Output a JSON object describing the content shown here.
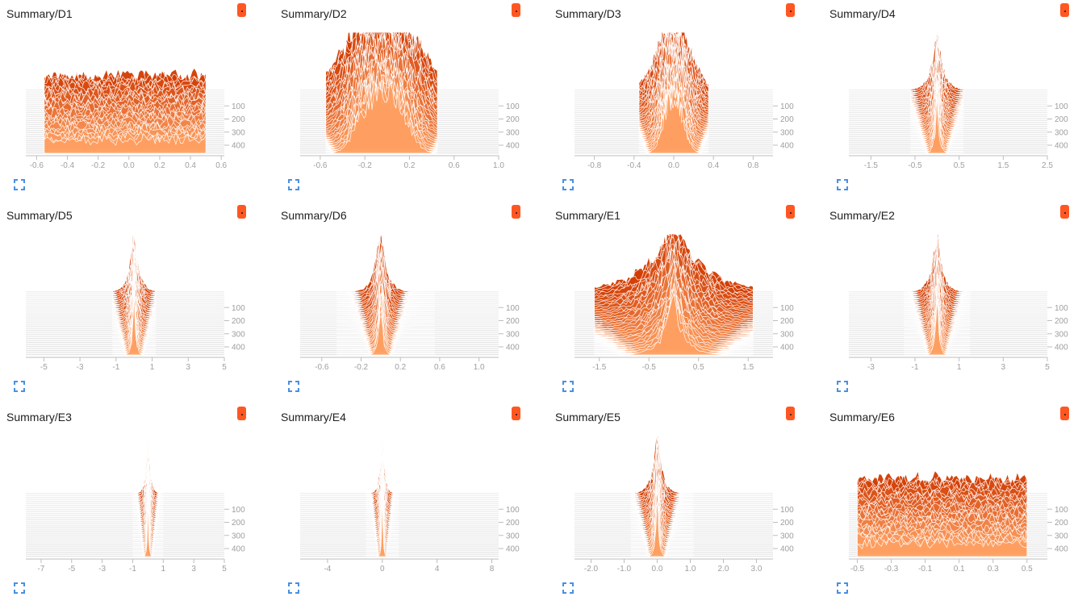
{
  "colors": {
    "front": "#ffa062",
    "back": "#d23a00",
    "badge": "#ff5722",
    "expand_icon": "#4a90e2",
    "axis": "#bdbdbd",
    "tick_text": "#9e9e9e",
    "title": "#212121"
  },
  "icons": {
    "badge": "caret-badge-icon",
    "expand": "expand-icon"
  },
  "chart_data": [
    {
      "type": "histogram-ridgeline",
      "title": "Summary/D1",
      "x_ticks": [
        -0.6,
        -0.4,
        -0.2,
        0.0,
        0.2,
        0.4,
        0.6
      ],
      "x_tick_labels": [
        "-0.6",
        "-0.4",
        "-0.2",
        "0.0",
        "0.2",
        "0.4",
        "0.6"
      ],
      "xlim": [
        -0.67,
        0.62
      ],
      "data_range": [
        -0.55,
        0.5
      ],
      "center": 0.0,
      "width": 0.75,
      "shape": "flat",
      "step_ticks": [
        100,
        200,
        300,
        400
      ],
      "step_range": [
        0,
        480
      ],
      "legend": "none",
      "grid": false
    },
    {
      "type": "histogram-ridgeline",
      "title": "Summary/D2",
      "x_ticks": [
        -0.6,
        -0.2,
        0.2,
        0.6,
        1.0
      ],
      "x_tick_labels": [
        "-0.6",
        "-0.2",
        "0.2",
        "0.6",
        "1.0"
      ],
      "xlim": [
        -0.78,
        1.0
      ],
      "data_range": [
        -0.55,
        0.45
      ],
      "center": -0.04,
      "width": 0.27,
      "shape": "plateau",
      "step_ticks": [
        100,
        200,
        300,
        400
      ],
      "step_range": [
        0,
        480
      ],
      "legend": "none",
      "grid": false
    },
    {
      "type": "histogram-ridgeline",
      "title": "Summary/D3",
      "x_ticks": [
        -0.8,
        -0.4,
        0.0,
        0.4,
        0.8
      ],
      "x_tick_labels": [
        "-0.8",
        "-0.4",
        "0.0",
        "0.4",
        "0.8"
      ],
      "xlim": [
        -1.0,
        1.0
      ],
      "data_range": [
        -0.35,
        0.35
      ],
      "center": 0.0,
      "width": 0.12,
      "shape": "round",
      "step_ticks": [
        100,
        200,
        300,
        400
      ],
      "step_range": [
        0,
        480
      ],
      "legend": "none",
      "grid": false
    },
    {
      "type": "histogram-ridgeline",
      "title": "Summary/D4",
      "x_ticks": [
        -1.5,
        -0.5,
        0.5,
        1.5,
        2.5
      ],
      "x_tick_labels": [
        "-1.5",
        "-0.5",
        "0.5",
        "1.5",
        "2.5"
      ],
      "xlim": [
        -2.0,
        2.5
      ],
      "data_range": [
        -0.6,
        0.6
      ],
      "center": 0.0,
      "width": 0.11,
      "shape": "spike",
      "step_ticks": [
        100,
        200,
        300,
        400
      ],
      "step_range": [
        0,
        480
      ],
      "legend": "none",
      "grid": false
    },
    {
      "type": "histogram-ridgeline",
      "title": "Summary/D5",
      "x_ticks": [
        -5,
        -3,
        -1,
        1,
        3,
        5
      ],
      "x_tick_labels": [
        "-5",
        "-3",
        "-1",
        "1",
        "3",
        "5"
      ],
      "xlim": [
        -6.0,
        5.0
      ],
      "data_range": [
        -1.2,
        1.2
      ],
      "center": 0.0,
      "width": 0.22,
      "shape": "spike",
      "step_ticks": [
        100,
        200,
        300,
        400
      ],
      "step_range": [
        0,
        480
      ],
      "legend": "none",
      "grid": false
    },
    {
      "type": "histogram-ridgeline",
      "title": "Summary/D6",
      "x_ticks": [
        -0.6,
        -0.2,
        0.2,
        0.6,
        1.0
      ],
      "x_tick_labels": [
        "-0.6",
        "-0.2",
        "0.2",
        "0.6",
        "1.0"
      ],
      "xlim": [
        -0.82,
        1.2
      ],
      "data_range": [
        -0.45,
        0.55
      ],
      "center": 0.0,
      "width": 0.05,
      "shape": "spike",
      "step_ticks": [
        100,
        200,
        300,
        400
      ],
      "step_range": [
        0,
        480
      ],
      "legend": "none",
      "grid": false
    },
    {
      "type": "histogram-ridgeline",
      "title": "Summary/E1",
      "x_ticks": [
        -1.5,
        -0.5,
        0.5,
        1.5
      ],
      "x_tick_labels": [
        "-1.5",
        "-0.5",
        "0.5",
        "1.5"
      ],
      "xlim": [
        -2.0,
        2.0
      ],
      "data_range": [
        -1.6,
        1.6
      ],
      "center": 0.0,
      "width": 0.35,
      "shape": "cone",
      "step_ticks": [
        100,
        200,
        300,
        400
      ],
      "step_range": [
        0,
        480
      ],
      "legend": "none",
      "grid": false
    },
    {
      "type": "histogram-ridgeline",
      "title": "Summary/E2",
      "x_ticks": [
        -3,
        -1,
        1,
        3,
        5
      ],
      "x_tick_labels": [
        "-3",
        "-1",
        "1",
        "3",
        "5"
      ],
      "xlim": [
        -4.0,
        5.0
      ],
      "data_range": [
        -1.5,
        1.5
      ],
      "center": 0.0,
      "width": 0.2,
      "shape": "spike",
      "step_ticks": [
        100,
        200,
        300,
        400
      ],
      "step_range": [
        0,
        480
      ],
      "legend": "none",
      "grid": false
    },
    {
      "type": "histogram-ridgeline",
      "title": "Summary/E3",
      "x_ticks": [
        -7,
        -5,
        -3,
        -1,
        1,
        3,
        5
      ],
      "x_tick_labels": [
        "-7",
        "-5",
        "-3",
        "-1",
        "1",
        "3",
        "5"
      ],
      "xlim": [
        -8.0,
        5.0
      ],
      "data_range": [
        -1.0,
        1.0
      ],
      "center": 0.0,
      "width": 0.12,
      "shape": "spike",
      "step_ticks": [
        100,
        200,
        300,
        400
      ],
      "step_range": [
        0,
        480
      ],
      "legend": "none",
      "grid": false
    },
    {
      "type": "histogram-ridgeline",
      "title": "Summary/E4",
      "x_ticks": [
        -4,
        0,
        4,
        8
      ],
      "x_tick_labels": [
        "-4",
        "0",
        "4",
        "8"
      ],
      "xlim": [
        -6.0,
        8.5
      ],
      "data_range": [
        -1.2,
        1.2
      ],
      "center": 0.0,
      "width": 0.14,
      "shape": "spike",
      "step_ticks": [
        100,
        200,
        300,
        400
      ],
      "step_range": [
        0,
        480
      ],
      "legend": "none",
      "grid": false
    },
    {
      "type": "histogram-ridgeline",
      "title": "Summary/E5",
      "x_ticks": [
        -2.0,
        -1.0,
        0.0,
        1.0,
        2.0,
        3.0
      ],
      "x_tick_labels": [
        "-2.0",
        "-1.0",
        "0.0",
        "1.0",
        "2.0",
        "3.0"
      ],
      "xlim": [
        -2.5,
        3.5
      ],
      "data_range": [
        -0.8,
        1.1
      ],
      "center": 0.0,
      "width": 0.12,
      "shape": "spike",
      "step_ticks": [
        100,
        200,
        300,
        400
      ],
      "step_range": [
        0,
        480
      ],
      "legend": "none",
      "grid": false
    },
    {
      "type": "histogram-ridgeline",
      "title": "Summary/E6",
      "x_ticks": [
        -0.5,
        -0.3,
        -0.1,
        0.1,
        0.3,
        0.5
      ],
      "x_tick_labels": [
        "-0.5",
        "-0.3",
        "-0.1",
        "0.1",
        "0.3",
        "0.5"
      ],
      "xlim": [
        -0.55,
        0.62
      ],
      "data_range": [
        -0.5,
        0.5
      ],
      "center": 0.0,
      "width": 0.75,
      "shape": "flat",
      "step_ticks": [
        100,
        200,
        300,
        400
      ],
      "step_range": [
        0,
        480
      ],
      "legend": "none",
      "grid": false
    }
  ]
}
